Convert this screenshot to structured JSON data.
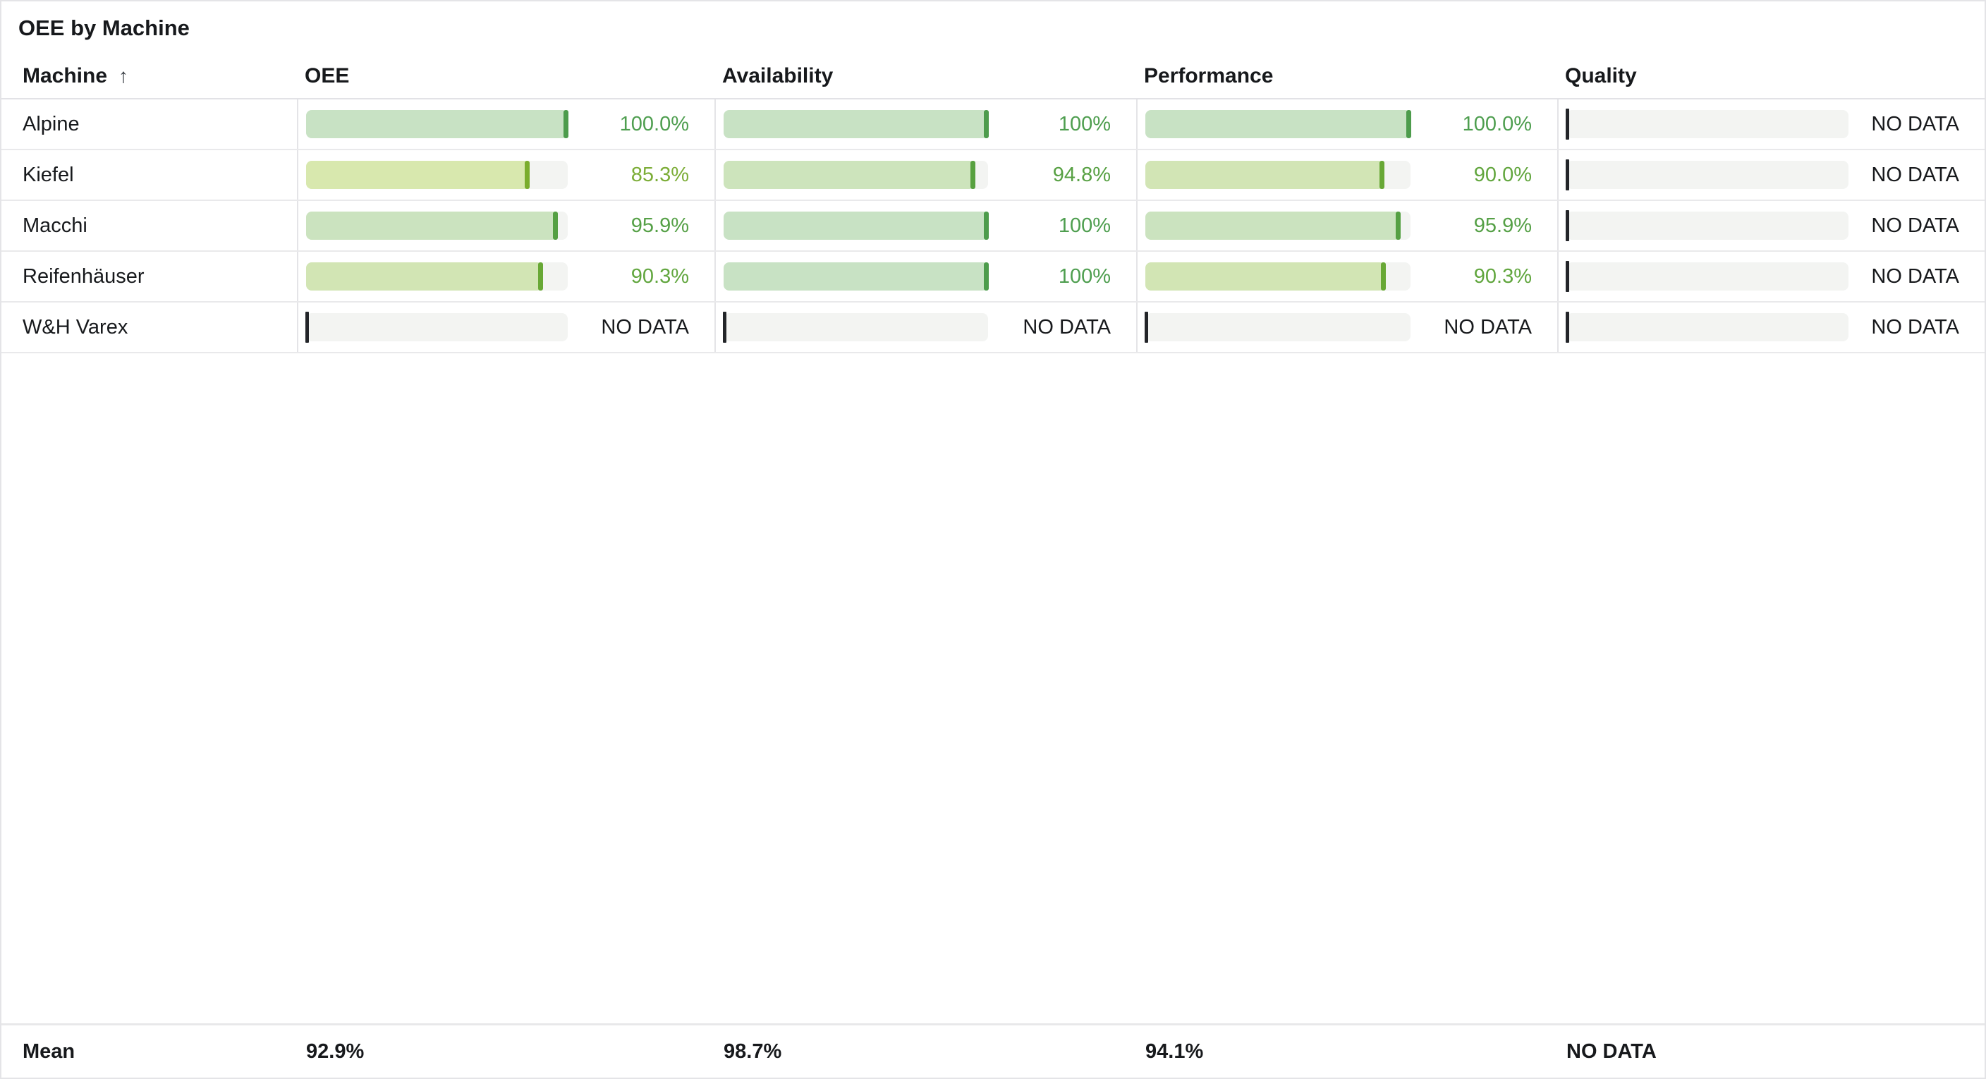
{
  "panel": {
    "title": "OEE by Machine"
  },
  "table": {
    "columns": [
      {
        "key": "machine",
        "label": "Machine",
        "sorted": true,
        "sort_icon": "↑"
      },
      {
        "key": "oee",
        "label": "OEE"
      },
      {
        "key": "availability",
        "label": "Availability"
      },
      {
        "key": "performance",
        "label": "Performance"
      },
      {
        "key": "quality",
        "label": "Quality"
      }
    ],
    "no_data_label": "NO DATA",
    "rows": [
      {
        "machine": "Alpine",
        "cells": [
          {
            "value": "100.0%",
            "pct": 100,
            "text_color": "#4e9e4f",
            "fill": "#c8e2c4",
            "cap": "#4d9c4c"
          },
          {
            "value": "100%",
            "pct": 100,
            "text_color": "#4e9e4f",
            "fill": "#c8e2c4",
            "cap": "#4d9c4c"
          },
          {
            "value": "100.0%",
            "pct": 100,
            "text_color": "#4e9e4f",
            "fill": "#c8e2c4",
            "cap": "#4d9c4c"
          },
          {
            "no_data": true
          }
        ]
      },
      {
        "machine": "Kiefel",
        "cells": [
          {
            "value": "85.3%",
            "pct": 85.3,
            "text_color": "#7cad37",
            "fill": "#d8e8ae",
            "cap": "#7aad2d"
          },
          {
            "value": "94.8%",
            "pct": 94.8,
            "text_color": "#58a144",
            "fill": "#cde4bc",
            "cap": "#58a140"
          },
          {
            "value": "90.0%",
            "pct": 90.0,
            "text_color": "#62a63e",
            "fill": "#d2e5b5",
            "cap": "#68a836"
          },
          {
            "no_data": true
          }
        ]
      },
      {
        "machine": "Macchi",
        "cells": [
          {
            "value": "95.9%",
            "pct": 95.9,
            "text_color": "#55a046",
            "fill": "#cbe3bf",
            "cap": "#55a043"
          },
          {
            "value": "100%",
            "pct": 100,
            "text_color": "#4e9e4f",
            "fill": "#c8e2c4",
            "cap": "#4d9c4c"
          },
          {
            "value": "95.9%",
            "pct": 95.9,
            "text_color": "#55a046",
            "fill": "#cbe3bf",
            "cap": "#55a043"
          },
          {
            "no_data": true
          }
        ]
      },
      {
        "machine": "Reifenhäuser",
        "cells": [
          {
            "value": "90.3%",
            "pct": 90.3,
            "text_color": "#61a63e",
            "fill": "#d2e5b4",
            "cap": "#68a835"
          },
          {
            "value": "100%",
            "pct": 100,
            "text_color": "#4e9e4f",
            "fill": "#c8e2c4",
            "cap": "#4d9c4c"
          },
          {
            "value": "90.3%",
            "pct": 90.3,
            "text_color": "#61a63e",
            "fill": "#d2e5b4",
            "cap": "#68a835"
          },
          {
            "no_data": true
          }
        ]
      },
      {
        "machine": "W&H Varex",
        "cells": [
          {
            "no_data": true
          },
          {
            "no_data": true
          },
          {
            "no_data": true
          },
          {
            "no_data": true
          }
        ]
      }
    ],
    "footer": {
      "label": "Mean",
      "values": [
        "92.9%",
        "98.7%",
        "94.1%",
        "NO DATA"
      ]
    }
  },
  "colors": {
    "track": "#f3f4f2",
    "no_data_cursor": "#232529",
    "row_border": "#e9e9eb",
    "column_separator": "#e4e4e7",
    "text_dark": "#17191c"
  },
  "chart_data": {
    "type": "table",
    "title": "OEE by Machine",
    "columns": [
      "Machine",
      "OEE",
      "Availability",
      "Performance",
      "Quality"
    ],
    "units": "%",
    "rows": [
      [
        "Alpine",
        100.0,
        100,
        100.0,
        null
      ],
      [
        "Kiefel",
        85.3,
        94.8,
        90.0,
        null
      ],
      [
        "Macchi",
        95.9,
        100,
        95.9,
        null
      ],
      [
        "Reifenhäuser",
        90.3,
        100,
        90.3,
        null
      ],
      [
        "W&H Varex",
        null,
        null,
        null,
        null
      ]
    ],
    "mean": [
      92.9,
      98.7,
      94.1,
      null
    ],
    "sort": {
      "column": "Machine",
      "direction": "asc"
    },
    "cell_style": "bar-gauge with end cap; null rendered as NO DATA with zero-cursor"
  }
}
